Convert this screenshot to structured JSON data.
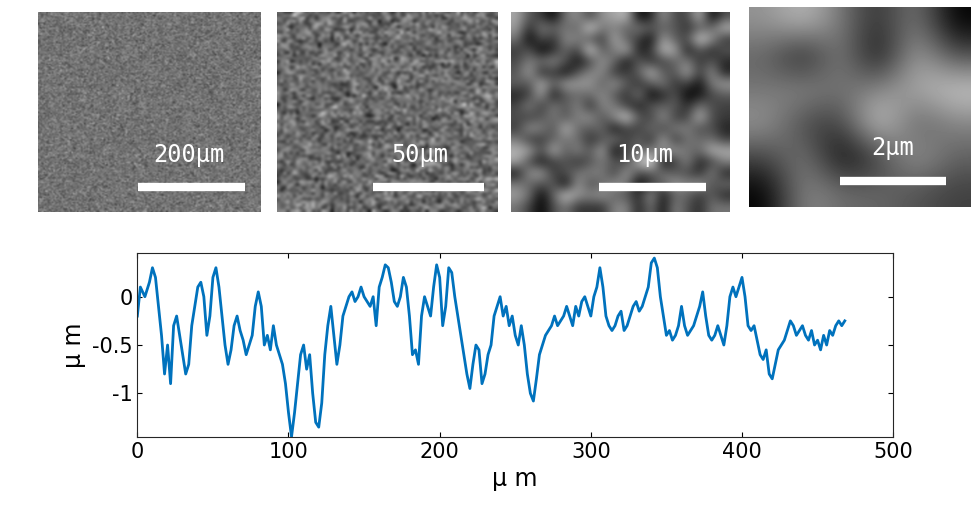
{
  "chart_data": {
    "type": "line",
    "x_label": "μ m",
    "y_label": "μ m",
    "x": [
      0,
      2,
      5,
      8,
      10,
      12,
      14,
      16,
      18,
      20,
      22,
      24,
      26,
      28,
      30,
      32,
      34,
      36,
      38,
      40,
      42,
      44,
      46,
      48,
      50,
      52,
      54,
      56,
      58,
      60,
      62,
      64,
      66,
      68,
      70,
      72,
      74,
      76,
      78,
      80,
      82,
      84,
      86,
      88,
      90,
      92,
      94,
      96,
      98,
      100,
      102,
      104,
      106,
      108,
      110,
      112,
      114,
      116,
      118,
      120,
      122,
      124,
      126,
      128,
      130,
      132,
      134,
      136,
      138,
      140,
      142,
      144,
      146,
      148,
      150,
      152,
      154,
      156,
      158,
      160,
      162,
      164,
      166,
      168,
      170,
      172,
      174,
      176,
      178,
      180,
      182,
      184,
      186,
      188,
      190,
      192,
      194,
      196,
      198,
      200,
      202,
      204,
      206,
      208,
      210,
      212,
      214,
      216,
      218,
      220,
      222,
      224,
      226,
      228,
      230,
      232,
      234,
      236,
      238,
      240,
      242,
      244,
      246,
      248,
      250,
      252,
      254,
      256,
      258,
      260,
      262,
      264,
      266,
      268,
      270,
      272,
      274,
      276,
      278,
      280,
      282,
      284,
      286,
      288,
      290,
      292,
      294,
      296,
      298,
      300,
      302,
      304,
      306,
      308,
      310,
      312,
      314,
      316,
      318,
      320,
      322,
      324,
      326,
      328,
      330,
      332,
      334,
      336,
      338,
      340,
      342,
      344,
      346,
      348,
      350,
      352,
      354,
      356,
      358,
      360,
      362,
      364,
      366,
      368,
      370,
      372,
      374,
      376,
      378,
      380,
      382,
      384,
      386,
      388,
      390,
      392,
      394,
      396,
      398,
      400,
      402,
      404,
      406,
      408,
      410,
      412,
      414,
      416,
      418,
      420,
      422,
      424,
      426,
      428,
      430,
      432,
      434,
      436,
      438,
      440,
      442,
      444,
      446,
      448,
      450,
      452,
      454,
      456,
      458,
      460,
      462,
      464,
      466,
      468
    ],
    "values": [
      -0.2,
      0.1,
      0.0,
      0.15,
      0.3,
      0.2,
      -0.1,
      -0.4,
      -0.8,
      -0.5,
      -0.9,
      -0.3,
      -0.2,
      -0.4,
      -0.6,
      -0.8,
      -0.7,
      -0.3,
      -0.1,
      0.1,
      0.15,
      0.0,
      -0.4,
      -0.2,
      0.2,
      0.3,
      0.1,
      -0.2,
      -0.5,
      -0.7,
      -0.55,
      -0.3,
      -0.2,
      -0.35,
      -0.45,
      -0.6,
      -0.5,
      -0.4,
      -0.1,
      0.05,
      -0.1,
      -0.5,
      -0.4,
      -0.55,
      -0.3,
      -0.5,
      -0.6,
      -0.7,
      -0.9,
      -1.2,
      -1.45,
      -1.2,
      -0.9,
      -0.6,
      -0.5,
      -0.75,
      -0.6,
      -1.0,
      -1.3,
      -1.35,
      -1.1,
      -0.6,
      -0.3,
      -0.1,
      -0.4,
      -0.7,
      -0.5,
      -0.2,
      -0.1,
      0.0,
      0.05,
      -0.05,
      0.0,
      0.1,
      0.0,
      -0.05,
      -0.1,
      0.0,
      -0.3,
      0.1,
      0.2,
      0.33,
      0.3,
      0.15,
      -0.05,
      -0.1,
      0.0,
      0.2,
      0.1,
      -0.2,
      -0.6,
      -0.55,
      -0.7,
      -0.2,
      0.0,
      -0.1,
      -0.2,
      0.1,
      0.33,
      0.2,
      -0.3,
      -0.1,
      0.3,
      0.25,
      0.0,
      -0.2,
      -0.4,
      -0.6,
      -0.8,
      -0.95,
      -0.7,
      -0.5,
      -0.55,
      -0.9,
      -0.8,
      -0.6,
      -0.5,
      -0.2,
      -0.1,
      0.0,
      -0.2,
      -0.1,
      -0.3,
      -0.2,
      -0.4,
      -0.5,
      -0.3,
      -0.5,
      -0.8,
      -1.0,
      -1.08,
      -0.85,
      -0.6,
      -0.5,
      -0.4,
      -0.35,
      -0.3,
      -0.2,
      -0.3,
      -0.25,
      -0.2,
      -0.1,
      -0.2,
      -0.3,
      -0.1,
      -0.2,
      -0.05,
      0.0,
      -0.1,
      -0.2,
      0.0,
      0.1,
      0.3,
      0.1,
      -0.2,
      -0.3,
      -0.35,
      -0.3,
      -0.2,
      -0.15,
      -0.35,
      -0.3,
      -0.2,
      -0.1,
      -0.05,
      -0.15,
      -0.1,
      0.0,
      0.1,
      0.35,
      0.4,
      0.3,
      0.0,
      -0.2,
      -0.4,
      -0.35,
      -0.45,
      -0.4,
      -0.3,
      -0.1,
      -0.3,
      -0.4,
      -0.35,
      -0.3,
      -0.2,
      -0.1,
      0.05,
      -0.2,
      -0.4,
      -0.45,
      -0.4,
      -0.3,
      -0.4,
      -0.5,
      -0.3,
      0.0,
      0.1,
      0.0,
      0.1,
      0.2,
      0.0,
      -0.3,
      -0.35,
      -0.3,
      -0.45,
      -0.6,
      -0.65,
      -0.55,
      -0.8,
      -0.85,
      -0.7,
      -0.55,
      -0.5,
      -0.45,
      -0.35,
      -0.25,
      -0.3,
      -0.4,
      -0.35,
      -0.3,
      -0.4,
      -0.45,
      -0.35,
      -0.5,
      -0.45,
      -0.55,
      -0.4,
      -0.5,
      -0.35,
      -0.4,
      -0.3,
      -0.25,
      -0.3,
      -0.25
    ],
    "color": "#0072bd",
    "xlim": [
      0,
      500
    ],
    "xticks": [
      0,
      100,
      200,
      300,
      400,
      500
    ],
    "ylim": [
      -1.45,
      0.45
    ],
    "yticks": [
      -1,
      -0.5,
      0
    ],
    "grid": false
  },
  "images": [
    {
      "scale_bar": "200μm"
    },
    {
      "scale_bar": "50μm"
    },
    {
      "scale_bar": "10μm"
    },
    {
      "scale_bar": "2μm"
    }
  ]
}
